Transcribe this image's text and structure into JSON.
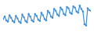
{
  "chart_data": {
    "type": "line",
    "categories": [
      null,
      null,
      null,
      null,
      null,
      null,
      null,
      null,
      null,
      null,
      null,
      null,
      null,
      null,
      null,
      null,
      null,
      null,
      null,
      null,
      null,
      null,
      null,
      null,
      null,
      null,
      null,
      null,
      null,
      null,
      null,
      null,
      null,
      null,
      null,
      null,
      null,
      null,
      null,
      null,
      null,
      null,
      null,
      null,
      null,
      null,
      null,
      null,
      null,
      null,
      null,
      null,
      null,
      null,
      null,
      null
    ],
    "values": [
      20,
      24,
      18,
      16,
      26,
      22,
      17,
      15,
      25,
      21,
      16,
      14,
      27,
      23,
      17,
      15,
      28,
      24,
      18,
      16,
      28,
      25,
      19,
      17,
      30,
      26,
      20,
      18,
      33,
      30,
      24,
      22,
      36,
      33,
      27,
      25,
      38,
      35,
      28,
      26,
      39,
      37,
      30,
      28,
      40,
      38,
      32,
      30,
      41,
      36,
      32,
      12,
      10,
      37,
      34,
      33
    ],
    "color": "#3d8fd6",
    "marker": "circle",
    "ylim": [
      0,
      45
    ],
    "grid": false,
    "tick_labels": false
  }
}
